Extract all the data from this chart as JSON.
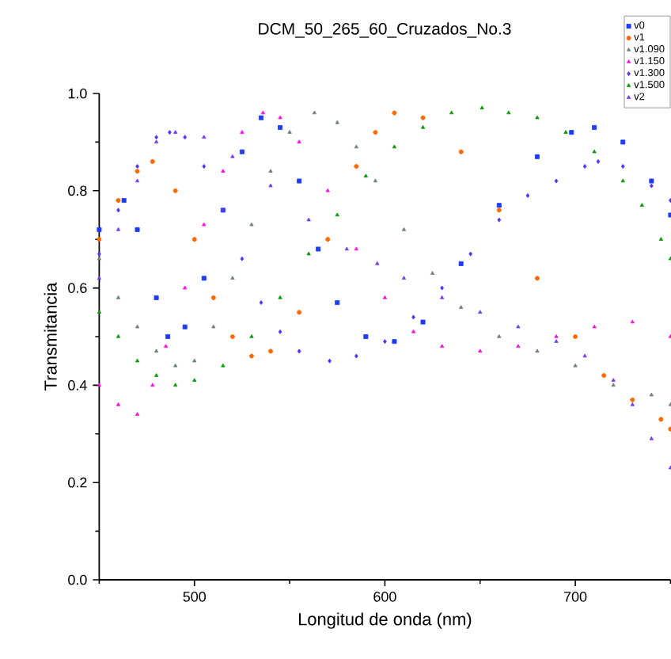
{
  "chart_data": {
    "type": "scatter",
    "title": "DCM_50_265_60_Cruzados_No.3",
    "xlabel": "Longitud de onda (nm)",
    "ylabel": "Transmitancia",
    "xlim": [
      450,
      750
    ],
    "ylim": [
      0,
      1.0
    ],
    "xticks": [
      {
        "value": 450,
        "label": null
      },
      500,
      {
        "value": 550,
        "label": null
      },
      600,
      {
        "value": 650,
        "label": null
      },
      700,
      {
        "value": 750,
        "label": null
      }
    ],
    "yticks": [
      {
        "value": 0,
        "label": "0.0"
      },
      {
        "value": 0.1,
        "label": null
      },
      {
        "value": 0.2,
        "label": "0.2"
      },
      {
        "value": 0.3,
        "label": null
      },
      {
        "value": 0.4,
        "label": "0.4"
      },
      {
        "value": 0.5,
        "label": null
      },
      {
        "value": 0.6,
        "label": "0.6"
      },
      {
        "value": 0.7,
        "label": null
      },
      {
        "value": 0.8,
        "label": "0.8"
      },
      {
        "value": 0.9,
        "label": null
      },
      {
        "value": 1.0,
        "label": "1.0"
      }
    ],
    "legend": "top right",
    "grid": false,
    "series": [
      {
        "name": "v0",
        "color": "#1f3cf5",
        "marker": "square",
        "x": [
          450,
          463,
          470,
          480,
          486,
          495,
          505,
          515,
          525,
          535,
          545,
          555,
          565,
          575,
          590,
          605,
          620,
          640,
          660,
          680,
          698,
          710,
          725,
          740,
          750
        ],
        "values": [
          0.72,
          0.78,
          0.72,
          0.58,
          0.5,
          0.52,
          0.62,
          0.76,
          0.88,
          0.95,
          0.93,
          0.82,
          0.68,
          0.57,
          0.5,
          0.49,
          0.53,
          0.65,
          0.77,
          0.87,
          0.92,
          0.93,
          0.9,
          0.82,
          0.75
        ]
      },
      {
        "name": "v1",
        "color": "#ff6a00",
        "marker": "circle",
        "x": [
          450,
          460,
          470,
          478,
          490,
          500,
          510,
          520,
          530,
          540,
          555,
          570,
          585,
          595,
          605,
          620,
          640,
          660,
          680,
          700,
          715,
          730,
          745,
          750
        ],
        "values": [
          0.7,
          0.78,
          0.84,
          0.86,
          0.8,
          0.7,
          0.58,
          0.5,
          0.46,
          0.47,
          0.55,
          0.7,
          0.85,
          0.92,
          0.96,
          0.95,
          0.88,
          0.76,
          0.62,
          0.5,
          0.42,
          0.37,
          0.33,
          0.31
        ]
      },
      {
        "name": "v1.090",
        "color": "#6f8080",
        "marker": "triangle",
        "x": [
          450,
          460,
          470,
          480,
          490,
          500,
          510,
          520,
          530,
          540,
          550,
          563,
          575,
          585,
          595,
          610,
          625,
          640,
          660,
          680,
          700,
          720,
          740,
          750
        ],
        "values": [
          0.66,
          0.58,
          0.52,
          0.47,
          0.44,
          0.45,
          0.52,
          0.62,
          0.73,
          0.84,
          0.92,
          0.96,
          0.94,
          0.89,
          0.82,
          0.72,
          0.63,
          0.56,
          0.5,
          0.47,
          0.44,
          0.4,
          0.38,
          0.36
        ]
      },
      {
        "name": "v1.150",
        "color": "#ff10e0",
        "marker": "triangle",
        "x": [
          450,
          460,
          470,
          478,
          485,
          495,
          505,
          515,
          525,
          536,
          545,
          555,
          570,
          585,
          600,
          615,
          630,
          650,
          670,
          690,
          710,
          730,
          750
        ],
        "values": [
          0.4,
          0.36,
          0.34,
          0.4,
          0.48,
          0.6,
          0.73,
          0.84,
          0.92,
          0.96,
          0.95,
          0.9,
          0.8,
          0.68,
          0.58,
          0.51,
          0.48,
          0.47,
          0.48,
          0.5,
          0.52,
          0.53,
          0.5
        ]
      },
      {
        "name": "v1.300",
        "color": "#5533ff",
        "marker": "diamond",
        "x": [
          450,
          460,
          470,
          480,
          487,
          495,
          505,
          515,
          525,
          535,
          545,
          555,
          571,
          585,
          600,
          615,
          630,
          645,
          660,
          675,
          690,
          705,
          712,
          725,
          740,
          750
        ],
        "values": [
          0.67,
          0.76,
          0.85,
          0.91,
          0.92,
          0.91,
          0.85,
          0.76,
          0.66,
          0.57,
          0.51,
          0.47,
          0.45,
          0.46,
          0.49,
          0.54,
          0.6,
          0.67,
          0.74,
          0.79,
          0.82,
          0.85,
          0.86,
          0.85,
          0.81,
          0.78
        ]
      },
      {
        "name": "v1.500",
        "color": "#0a9a0a",
        "marker": "triangle",
        "x": [
          450,
          460,
          470,
          480,
          490,
          500,
          515,
          530,
          545,
          560,
          575,
          590,
          605,
          620,
          635,
          651,
          665,
          680,
          695,
          710,
          725,
          735,
          745,
          750
        ],
        "values": [
          0.55,
          0.5,
          0.45,
          0.42,
          0.4,
          0.41,
          0.44,
          0.5,
          0.58,
          0.67,
          0.75,
          0.83,
          0.89,
          0.93,
          0.96,
          0.97,
          0.96,
          0.95,
          0.92,
          0.88,
          0.82,
          0.77,
          0.7,
          0.66
        ]
      },
      {
        "name": "v2",
        "color": "#7a3cf0",
        "marker": "triangle",
        "x": [
          450,
          460,
          470,
          480,
          490,
          505,
          520,
          540,
          560,
          580,
          596,
          610,
          630,
          650,
          670,
          690,
          705,
          720,
          730,
          740,
          750
        ],
        "values": [
          0.62,
          0.72,
          0.82,
          0.9,
          0.92,
          0.91,
          0.87,
          0.81,
          0.74,
          0.68,
          0.65,
          0.62,
          0.58,
          0.55,
          0.52,
          0.49,
          0.46,
          0.41,
          0.36,
          0.29,
          0.23
        ]
      }
    ]
  }
}
